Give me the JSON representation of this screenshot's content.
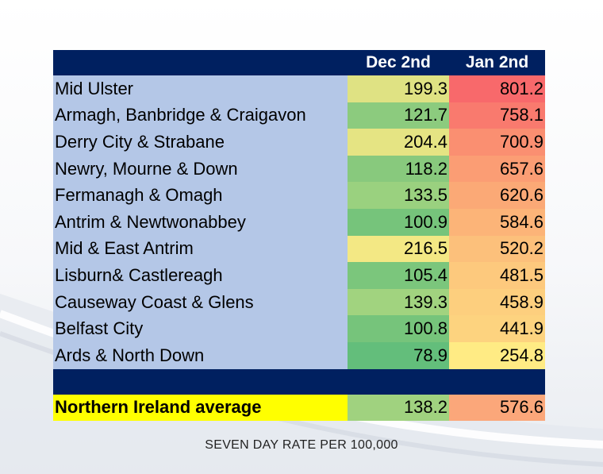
{
  "table": {
    "headers": [
      "",
      "Dec 2nd",
      "Jan 2nd"
    ],
    "rows": [
      {
        "name": "Mid Ulster",
        "dec": "199.3",
        "jan": "801.2",
        "dec_color": "#dfe283",
        "jan_color": "#f8696b"
      },
      {
        "name": "Armagh, Banbridge & Craigavon",
        "dec": "121.7",
        "jan": "758.1",
        "dec_color": "#8ccb7e",
        "jan_color": "#f97a6e"
      },
      {
        "name": "Derry City & Strabane",
        "dec": "204.4",
        "jan": "700.9",
        "dec_color": "#e5e483",
        "jan_color": "#fa8f71"
      },
      {
        "name": "Newry, Mourne & Down",
        "dec": "118.2",
        "jan": "657.6",
        "dec_color": "#88c97d",
        "jan_color": "#fb9d74"
      },
      {
        "name": "Fermanagh & Omagh",
        "dec": "133.5",
        "jan": "620.6",
        "dec_color": "#9ad17f",
        "jan_color": "#fba976"
      },
      {
        "name": "Antrim & Newtwonabbey",
        "dec": "100.9",
        "jan": "584.6",
        "dec_color": "#76c47b",
        "jan_color": "#fcb478"
      },
      {
        "name": "Mid & East Antrim",
        "dec": "216.5",
        "jan": "520.2",
        "dec_color": "#f3e884",
        "jan_color": "#fcc07b"
      },
      {
        "name": "Lisburn& Castlereagh",
        "dec": "105.4",
        "jan": "481.5",
        "dec_color": "#7bc67c",
        "jan_color": "#fdc97d"
      },
      {
        "name": "Causeway Coast & Glens",
        "dec": "139.3",
        "jan": "458.9",
        "dec_color": "#a1d37f",
        "jan_color": "#fdcf7e"
      },
      {
        "name": "Belfast City",
        "dec": "100.8",
        "jan": "441.9",
        "dec_color": "#76c47b",
        "jan_color": "#fdd37f"
      },
      {
        "name": "Ards & North Down",
        "dec": "78.9",
        "jan": "254.8",
        "dec_color": "#63be7b",
        "jan_color": "#ffeb84"
      }
    ],
    "average": {
      "name": "Northern Ireland average",
      "dec": "138.2",
      "jan": "576.6",
      "dec_color": "#a0d27f",
      "jan_color": "#fba77a"
    }
  },
  "caption": "SEVEN DAY RATE PER 100,000",
  "chart_data": {
    "type": "table",
    "columns": [
      "Dec 2nd",
      "Jan 2nd"
    ],
    "categories": [
      "Mid Ulster",
      "Armagh, Banbridge & Craigavon",
      "Derry City & Strabane",
      "Newry, Mourne & Down",
      "Fermanagh & Omagh",
      "Antrim & Newtwonabbey",
      "Mid & East Antrim",
      "Lisburn& Castlereagh",
      "Causeway Coast & Glens",
      "Belfast City",
      "Ards & North Down",
      "Northern Ireland average"
    ],
    "series": [
      {
        "name": "Dec 2nd",
        "values": [
          199.3,
          121.7,
          204.4,
          118.2,
          133.5,
          100.9,
          216.5,
          105.4,
          139.3,
          100.8,
          78.9,
          138.2
        ]
      },
      {
        "name": "Jan 2nd",
        "values": [
          801.2,
          758.1,
          700.9,
          657.6,
          620.6,
          584.6,
          520.2,
          481.5,
          458.9,
          441.9,
          254.8,
          576.6
        ]
      }
    ],
    "caption": "SEVEN DAY RATE PER 100,000"
  }
}
